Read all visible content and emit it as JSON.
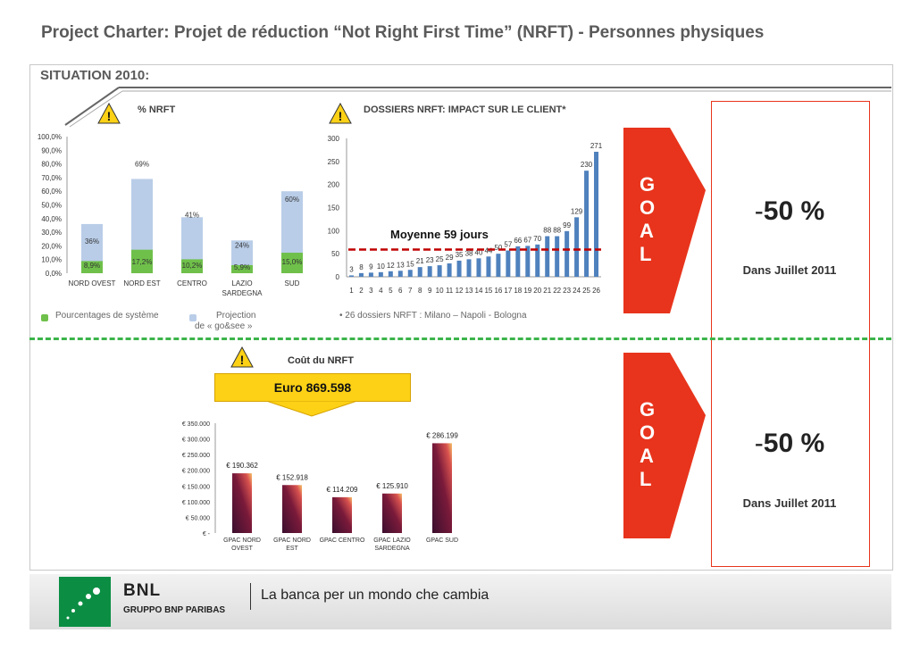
{
  "title": "Project Charter: Projet de réduction “Not Right First Time” (NRFT) - Personnes physiques",
  "situation": "SITUATION 2010:",
  "panel1": {
    "title": "% NRFT",
    "legend_a": "Pourcentages de système",
    "legend_b_line1": "Projection",
    "legend_b_line2": "de « go&see »"
  },
  "panel2": {
    "title": "DOSSIERS NRFT: IMPACT SUR LE CLIENT*",
    "avg_label": "Moyenne 59 jours",
    "note": "• 26 dossiers NRFT : Milano – Napoli - Bologna"
  },
  "cost": {
    "label": "Coût du NRFT",
    "value": "Euro 869.598"
  },
  "goal1": {
    "letters": [
      "G",
      "O",
      "A",
      "L"
    ],
    "pct_dash": "-",
    "pct": "50 %",
    "date": "Dans Juillet 2011"
  },
  "goal2": {
    "letters": [
      "G",
      "O",
      "A",
      "L"
    ],
    "pct_dash": "-",
    "pct": "50 %",
    "date": "Dans Juillet 2011"
  },
  "footer": {
    "brand": "BNL",
    "group": "GRUPPO BNP PARIBAS",
    "slogan": "La banca per un mondo che cambia"
  },
  "colors": {
    "accent_red": "#e8341c",
    "green": "#3cb44b",
    "blue_bar": "#4f81bd",
    "yellow": "#fcd116"
  },
  "chart_data": [
    {
      "type": "bar",
      "categories": [
        "NORD OVEST",
        "NORD EST",
        "CENTRO",
        "LAZIO SARDEGNA",
        "SUD"
      ],
      "series": [
        {
          "values": [
            8.9,
            17.2,
            10.2,
            5.9,
            15.0
          ],
          "labels": [
            "8,9%",
            "17,2%",
            "10,2%",
            "5,9%",
            "15,0%"
          ]
        },
        {
          "values": [
            36,
            69,
            41,
            24,
            60
          ],
          "labels": [
            "36%",
            "69%",
            "41%",
            "24%",
            "60%"
          ]
        }
      ],
      "yticks": [
        "0,0%",
        "10,0%",
        "20,0%",
        "30,0%",
        "40,0%",
        "50,0%",
        "60,0%",
        "70,0%",
        "80,0%",
        "90,0%",
        "100,0%"
      ],
      "ylim": [
        0,
        100
      ]
    },
    {
      "type": "bar",
      "categories": [
        "1",
        "2",
        "3",
        "4",
        "5",
        "6",
        "7",
        "8",
        "9",
        "10",
        "11",
        "12",
        "13",
        "14",
        "15",
        "16",
        "17",
        "18",
        "19",
        "20",
        "21",
        "22",
        "23",
        "24",
        "25",
        "26"
      ],
      "values": [
        3,
        8,
        9,
        10,
        12,
        13,
        15,
        21,
        23,
        25,
        29,
        35,
        38,
        40,
        44,
        50,
        57,
        66,
        67,
        70,
        88,
        88,
        99,
        129,
        230,
        271
      ],
      "yticks": [
        "0",
        "50",
        "100",
        "150",
        "200",
        "250",
        "300"
      ],
      "ylim": [
        0,
        300
      ],
      "average": 59
    },
    {
      "type": "bar",
      "categories": [
        "GPAC NORD OVEST",
        "GPAC NORD EST",
        "GPAC CENTRO",
        "GPAC LAZIO SARDEGNA",
        "GPAC SUD"
      ],
      "values": [
        190362,
        152918,
        114209,
        125910,
        286199
      ],
      "labels": [
        "€ 190.362",
        "€ 152.918",
        "€ 114.209",
        "€ 125.910",
        "€ 286.199"
      ],
      "yticks": [
        "€ -",
        "€ 50.000",
        "€ 100.000",
        "€ 150.000",
        "€ 200.000",
        "€ 250.000",
        "€ 300.000",
        "€ 350.000"
      ],
      "ylim": [
        0,
        350000
      ]
    }
  ]
}
